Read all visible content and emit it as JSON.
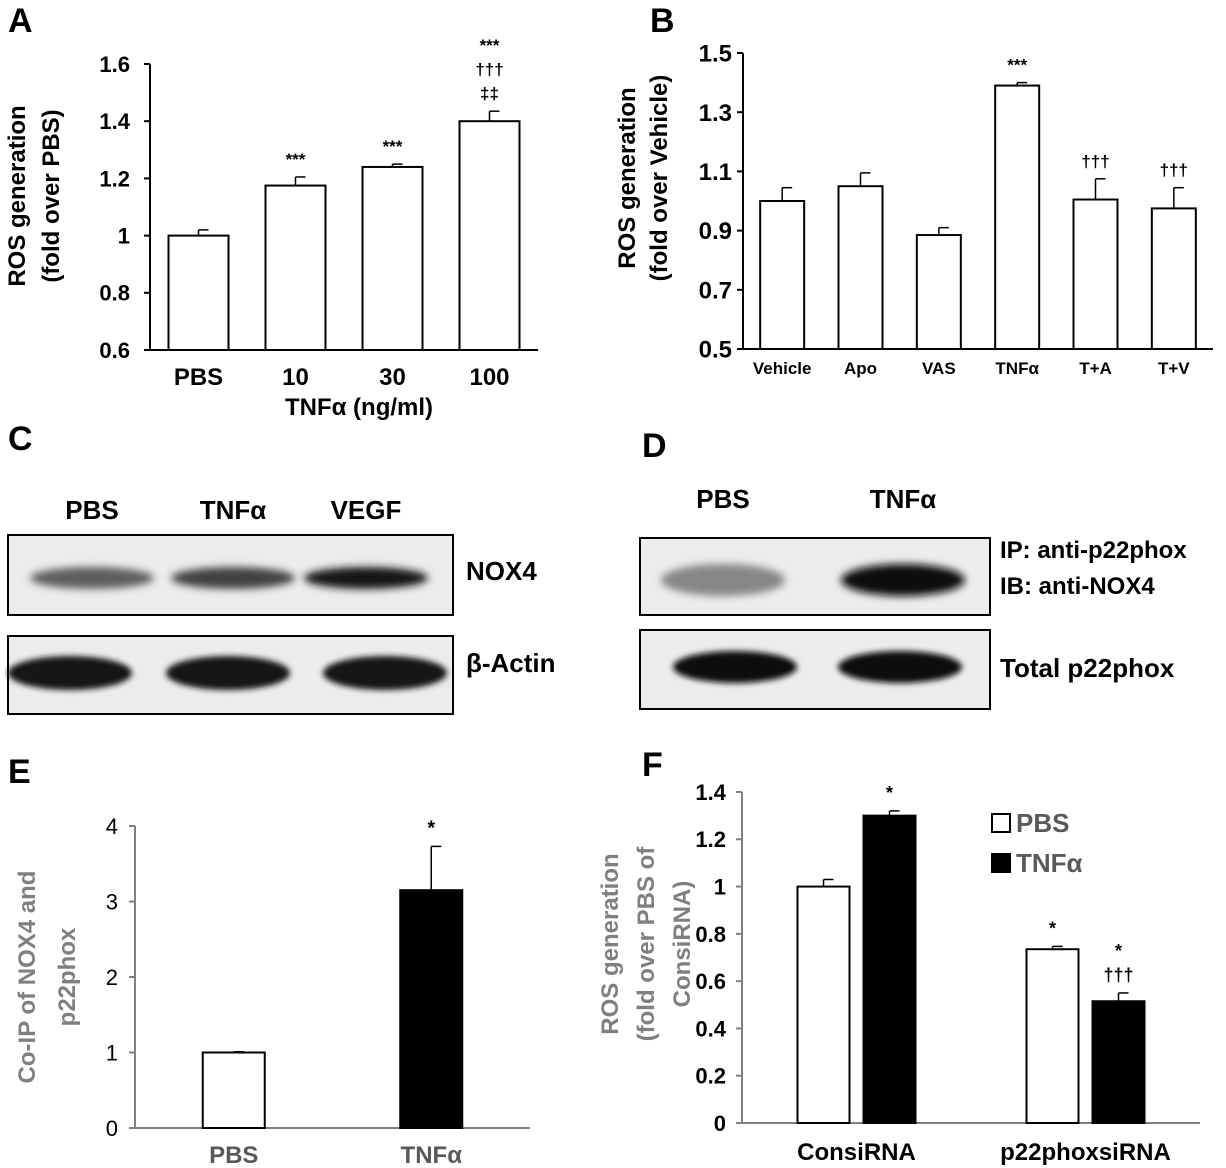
{
  "panel_letters": {
    "a": "A",
    "b": "B",
    "c": "C",
    "d": "D",
    "e": "E",
    "f": "F"
  },
  "colors": {
    "white_bar": "#ffffff",
    "black_bar": "#000000",
    "axis": "#000000",
    "gray_axis": "#808080",
    "gray_text": "#7f7f7f"
  },
  "chart_data": [
    {
      "panel": "A",
      "type": "bar",
      "categories": [
        "PBS",
        "10",
        "30",
        "100"
      ],
      "values": [
        1.0,
        1.175,
        1.24,
        1.4
      ],
      "errors": [
        0.02,
        0.03,
        0.01,
        0.035
      ],
      "annotations": [
        [],
        [
          "***"
        ],
        [
          "***"
        ],
        [
          "***",
          "†††",
          "‡‡"
        ]
      ],
      "ylabel_lines": [
        "ROS generation",
        "(fold  over PBS)"
      ],
      "xlabel": "TNFα (ng/ml)",
      "ylim": [
        0.6,
        1.6
      ],
      "yticks": [
        "0.6",
        "0.8",
        "1",
        "1.2",
        "1.4",
        "1.6"
      ],
      "grid": false
    },
    {
      "panel": "B",
      "type": "bar",
      "categories": [
        "Vehicle",
        "Apo",
        "VAS",
        "TNFα",
        "T+A",
        "T+V"
      ],
      "values": [
        1.0,
        1.05,
        0.885,
        1.39,
        1.005,
        0.975
      ],
      "errors": [
        0.045,
        0.045,
        0.025,
        0.01,
        0.07,
        0.07
      ],
      "annotations": [
        [],
        [],
        [],
        [
          "***"
        ],
        [
          "†††"
        ],
        [
          "†††"
        ]
      ],
      "ylabel_lines": [
        "ROS generation",
        "(fold over Vehicle)"
      ],
      "xlabel": "",
      "ylim": [
        0.5,
        1.5
      ],
      "yticks": [
        "0.5",
        "0.7",
        "0.9",
        "1.1",
        "1.3",
        "1.5"
      ],
      "grid": false
    },
    {
      "panel": "E",
      "type": "bar",
      "categories": [
        "PBS",
        "TNFα"
      ],
      "values": [
        1.0,
        3.15
      ],
      "errors": [
        0.01,
        0.58
      ],
      "bar_colors": [
        "#ffffff",
        "#000000"
      ],
      "annotations": [
        [],
        [
          "*"
        ]
      ],
      "ylabel_lines": [
        "Co-IP of NOX4 and",
        "p22phox"
      ],
      "xlabel": "",
      "ylim": [
        0,
        4
      ],
      "yticks": [
        "0",
        "1",
        "2",
        "3",
        "4"
      ],
      "grid": false
    },
    {
      "panel": "F",
      "type": "bar",
      "categories": [
        "ConsiRNA",
        "p22phoxsiRNA"
      ],
      "series": [
        {
          "name": "PBS",
          "values": [
            1.0,
            0.735
          ],
          "errors": [
            0.03,
            0.012
          ],
          "color": "#ffffff",
          "annotations": [
            [],
            [
              "*"
            ]
          ]
        },
        {
          "name": "TNFα",
          "values": [
            1.3,
            0.515
          ],
          "errors": [
            0.02,
            0.035
          ],
          "color": "#000000",
          "annotations": [
            [
              "*"
            ],
            [
              "*",
              "†††"
            ]
          ]
        }
      ],
      "ylabel_lines": [
        "ROS generation",
        "(fold over PBS of",
        "ConsiRNA)"
      ],
      "xlabel": "",
      "ylim": [
        0,
        1.4
      ],
      "yticks": [
        "0",
        "0.2",
        "0.4",
        "0.6",
        "0.8",
        "1",
        "1.2",
        "1.4"
      ],
      "legend_position": "top-right",
      "grid": false
    }
  ],
  "blots": {
    "c": {
      "lanes": [
        "PBS",
        "TNFα",
        "VEGF"
      ],
      "bands": [
        {
          "label": "NOX4",
          "intensities": [
            0.55,
            0.7,
            0.95
          ]
        },
        {
          "label": "β-Actin",
          "intensities": [
            0.95,
            0.95,
            0.95
          ]
        }
      ]
    },
    "d": {
      "lanes": [
        "PBS",
        "TNFα"
      ],
      "bands": [
        {
          "label_lines": [
            "IP: anti-p22phox",
            "IB: anti-NOX4"
          ],
          "intensities": [
            0.35,
            1.0
          ]
        },
        {
          "label": "Total p22phox",
          "intensities": [
            1.0,
            1.0
          ]
        }
      ]
    }
  }
}
